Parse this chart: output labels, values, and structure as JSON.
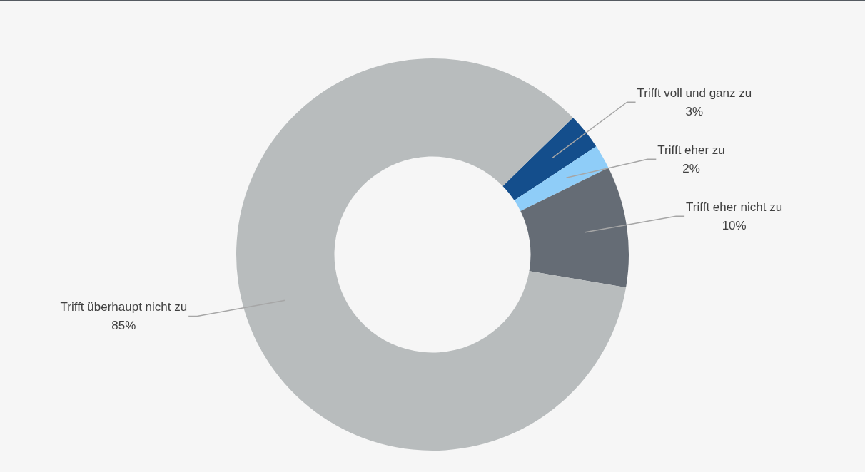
{
  "chart_data": {
    "type": "donut",
    "categories": [
      "Trifft voll und ganz zu",
      "Trifft eher zu",
      "Trifft eher nicht zu",
      "Trifft überhaupt nicht zu"
    ],
    "values": [
      3,
      2,
      10,
      85
    ],
    "colors": [
      "#144e8c",
      "#8fcdf8",
      "#656c75",
      "#b8bcbd"
    ],
    "value_labels": [
      "3%",
      "2%",
      "10%",
      "85%"
    ],
    "legend": false
  }
}
